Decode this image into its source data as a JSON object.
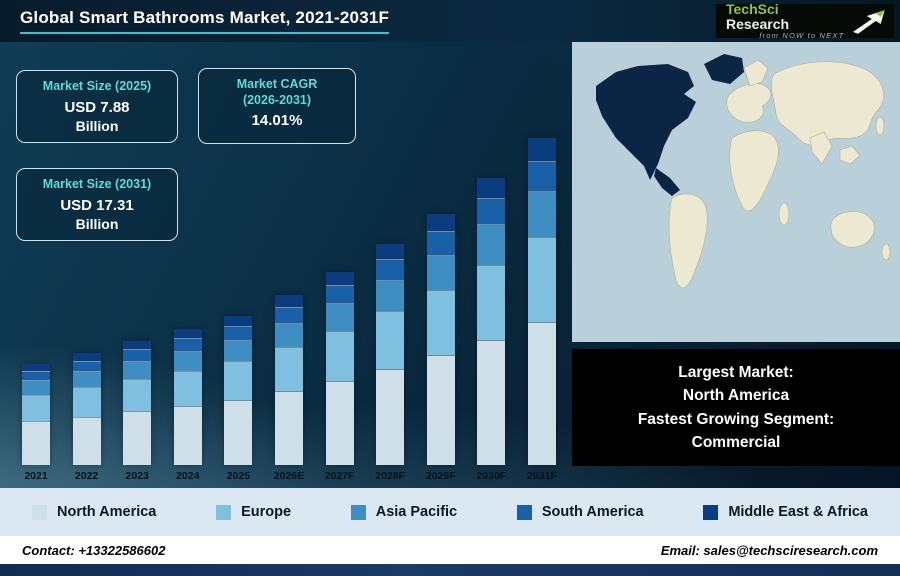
{
  "header": {
    "title": "Global Smart Bathrooms Market, 2021-2031F",
    "logo": {
      "name1": "TechSci",
      "name2": "Research",
      "tagline": "from NOW to NEXT"
    }
  },
  "stats": [
    {
      "label": "Market Size (2025)",
      "value": "USD 7.88",
      "unit": "Billion"
    },
    {
      "label": "Market CAGR\n(2026-2031)",
      "value": "14.01%",
      "unit": ""
    },
    {
      "label": "Market Size (2031)",
      "value": "USD 17.31",
      "unit": "Billion"
    }
  ],
  "chart_data": {
    "type": "bar",
    "stacked": true,
    "title": "Global Smart Bathrooms Market, 2021-2031F",
    "unit": "USD Billion",
    "categories": [
      "2021",
      "2022",
      "2023",
      "2024",
      "2025",
      "2026E",
      "2027F",
      "2028F",
      "2029F",
      "2030F",
      "2031F"
    ],
    "totals": [
      5.35,
      5.95,
      6.55,
      7.2,
      7.88,
      8.98,
      10.24,
      11.68,
      13.31,
      15.18,
      17.31
    ],
    "series": [
      {
        "name": "North America",
        "color": "#cfdfe9",
        "values": [
          2.35,
          2.62,
          2.88,
          3.17,
          3.47,
          3.95,
          4.51,
          5.14,
          5.86,
          6.68,
          7.62
        ]
      },
      {
        "name": "Europe",
        "color": "#7fc0e0",
        "values": [
          1.39,
          1.55,
          1.7,
          1.87,
          2.05,
          2.33,
          2.66,
          3.04,
          3.46,
          3.95,
          4.5
        ]
      },
      {
        "name": "Asia Pacific",
        "color": "#3e8ec4",
        "values": [
          0.75,
          0.83,
          0.92,
          1.01,
          1.1,
          1.26,
          1.43,
          1.64,
          1.86,
          2.13,
          2.42
        ]
      },
      {
        "name": "South America",
        "color": "#1a60a8",
        "values": [
          0.48,
          0.54,
          0.59,
          0.65,
          0.71,
          0.81,
          0.92,
          1.05,
          1.2,
          1.37,
          1.56
        ]
      },
      {
        "name": "Middle East & Africa",
        "color": "#0b3c80",
        "values": [
          0.37,
          0.42,
          0.46,
          0.5,
          0.55,
          0.63,
          0.72,
          0.82,
          0.93,
          1.06,
          1.21
        ]
      }
    ],
    "ylim": [
      0,
      18
    ],
    "grid": false,
    "legend_position": "bottom"
  },
  "map_note": {
    "lines": [
      "Largest Market:",
      "North America",
      "Fastest Growing Segment:",
      "Commercial"
    ]
  },
  "map": {
    "highlight_region": "North America",
    "highlight_color": "#0d2544",
    "land_color": "#ece8d2",
    "sea_color": "#b9d0da"
  },
  "footer": {
    "contact": "Contact: +13322586602",
    "email": "Email: sales@techsciresearch.com"
  }
}
